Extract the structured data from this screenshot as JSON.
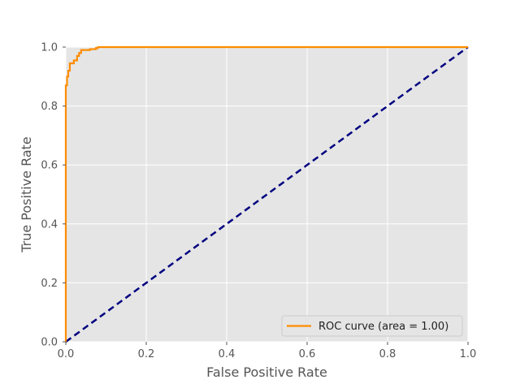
{
  "chart_data": {
    "type": "line",
    "title": "",
    "xlabel": "False Positive Rate",
    "ylabel": "True Positive Rate",
    "xlim": [
      0.0,
      1.0
    ],
    "ylim": [
      0.0,
      1.0
    ],
    "xticks": [
      "0.0",
      "0.2",
      "0.4",
      "0.6",
      "0.8",
      "1.0"
    ],
    "yticks": [
      "0.0",
      "0.2",
      "0.4",
      "0.6",
      "0.8",
      "1.0"
    ],
    "grid": true,
    "legend_position": "lower-right",
    "series": [
      {
        "name": "ROC curve (area = 1.00)",
        "color": "#ff8c00",
        "style": "solid",
        "x": [
          0.0,
          0.0,
          0.003,
          0.003,
          0.006,
          0.006,
          0.01,
          0.01,
          0.02,
          0.02,
          0.028,
          0.028,
          0.033,
          0.033,
          0.038,
          0.038,
          0.06,
          0.06,
          0.075,
          0.075,
          0.08,
          0.08,
          1.0
        ],
        "y": [
          0.0,
          0.87,
          0.87,
          0.9,
          0.9,
          0.92,
          0.92,
          0.945,
          0.945,
          0.955,
          0.955,
          0.97,
          0.97,
          0.98,
          0.98,
          0.99,
          0.99,
          0.993,
          0.993,
          0.997,
          0.997,
          1.0,
          1.0
        ]
      },
      {
        "name": "",
        "color": "#000080",
        "style": "dashed",
        "x": [
          0.0,
          1.0
        ],
        "y": [
          0.0,
          1.0
        ]
      }
    ]
  }
}
